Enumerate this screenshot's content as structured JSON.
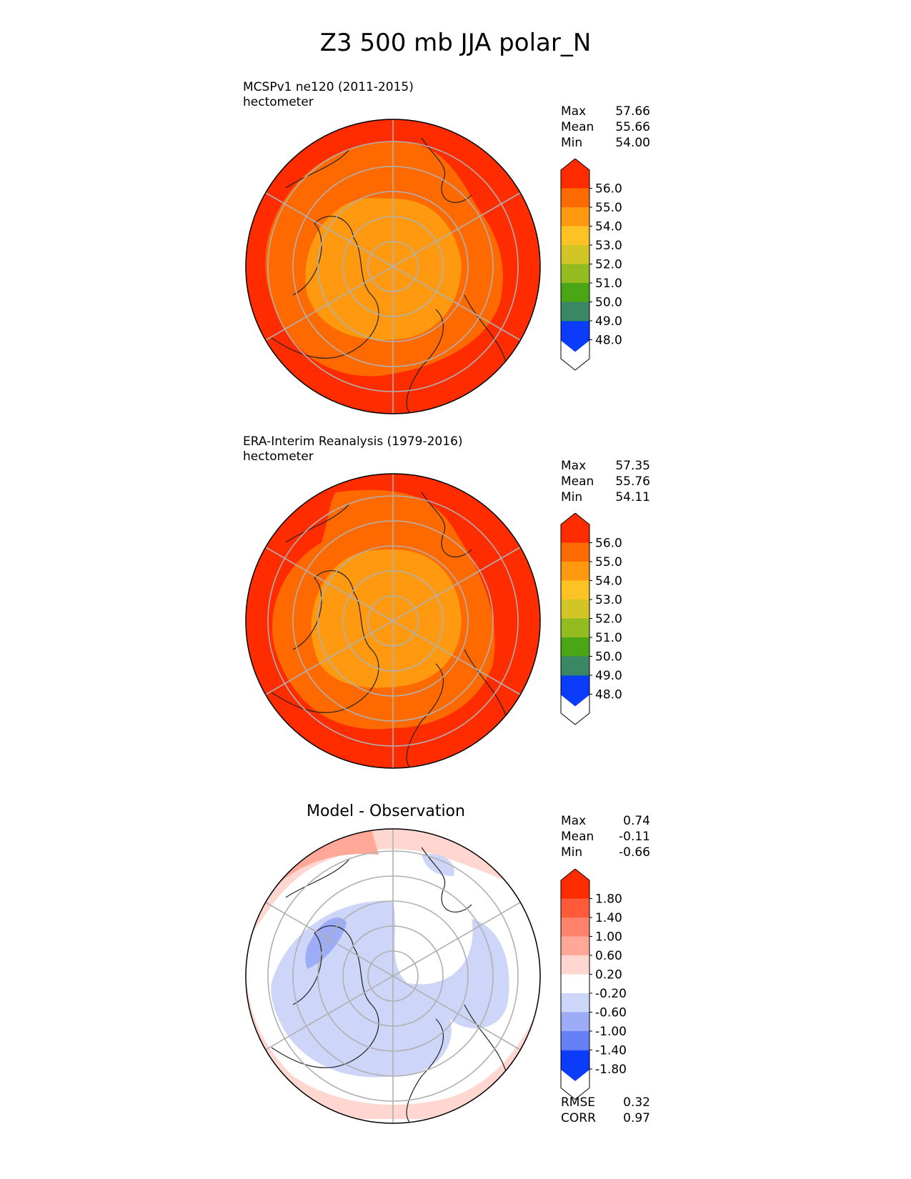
{
  "title": "Z3 500 mb JJA polar_N",
  "panels": [
    {
      "label_line1": "MCSPv1 ne120 (2011-2015)",
      "label_line2": "hectometer",
      "stats": [
        {
          "name": "Max",
          "value": "57.66"
        },
        {
          "name": "Mean",
          "value": "55.66"
        },
        {
          "name": "Min",
          "value": "54.00"
        }
      ]
    },
    {
      "label_line1": "ERA-Interim Reanalysis (1979-2016)",
      "label_line2": "hectometer",
      "stats": [
        {
          "name": "Max",
          "value": "57.35"
        },
        {
          "name": "Mean",
          "value": "55.76"
        },
        {
          "name": "Min",
          "value": "54.11"
        }
      ]
    },
    {
      "title": "Model - Observation",
      "stats": [
        {
          "name": "Max",
          "value": "0.74"
        },
        {
          "name": "Mean",
          "value": "-0.11"
        },
        {
          "name": "Min",
          "value": "-0.66"
        }
      ],
      "metrics": [
        {
          "name": "RMSE",
          "value": "0.32"
        },
        {
          "name": "CORR",
          "value": "0.97"
        }
      ]
    }
  ],
  "colorbar_abs": {
    "ticks": [
      "56.0",
      "55.0",
      "54.0",
      "53.0",
      "52.0",
      "51.0",
      "50.0",
      "49.0",
      "48.0"
    ],
    "colors": [
      "#ff2c00",
      "#ff6a00",
      "#ff9a10",
      "#fdc325",
      "#d2c626",
      "#94bb1f",
      "#4ba615",
      "#3a8766",
      "#086aa2",
      "#0a3cfa"
    ]
  },
  "colorbar_diff": {
    "ticks": [
      "1.80",
      "1.40",
      "1.00",
      "0.60",
      "0.20",
      "-0.20",
      "-0.60",
      "-1.00",
      "-1.40",
      "-1.80"
    ],
    "colors": [
      "#ff2c00",
      "#ff5a3a",
      "#ff826a",
      "#ffa898",
      "#ffd6d0",
      "#ffffff",
      "#cdd6f8",
      "#9cacf6",
      "#6880f6",
      "#3a5bf8",
      "#0a3cfa"
    ]
  }
}
